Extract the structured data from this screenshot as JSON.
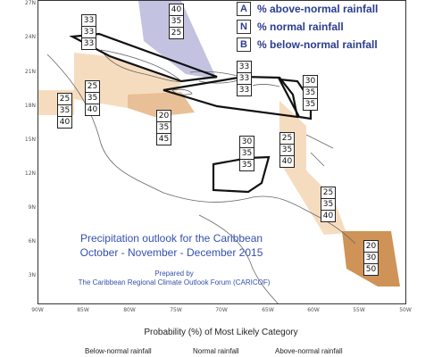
{
  "legend": {
    "items": [
      {
        "key": "A",
        "text": "% above-normal rainfall"
      },
      {
        "key": "N",
        "text": "% normal rainfall"
      },
      {
        "key": "B",
        "text": "% below-normal rainfall"
      }
    ]
  },
  "map": {
    "lat_labels": [
      "27N",
      "24N",
      "21N",
      "18N",
      "15N",
      "12N",
      "9N",
      "6N",
      "3N"
    ],
    "lon_labels": [
      "90W",
      "85W",
      "80W",
      "75W",
      "70W",
      "65W",
      "60W",
      "55W",
      "50W"
    ],
    "title_line1": "Precipitation outlook for the Caribbean",
    "title_line2": "October - November - December 2015",
    "credit_line1": "Prepared by",
    "credit_line2": "The Caribbean Regional Climate Outlook Forum (CARICOF)"
  },
  "colors": {
    "above_normal": "#b8b8dc",
    "below_normal": "#f6dcbf",
    "below_normal_strong": "#cf9357",
    "coast": "#666666",
    "text_blue": "#3450b0"
  },
  "probability_boxes": [
    {
      "id": "bahamas",
      "A": "33",
      "N": "33",
      "B": "33"
    },
    {
      "id": "northeast-atlantic",
      "A": "40",
      "N": "35",
      "B": "25"
    },
    {
      "id": "greater-antilles-east",
      "A": "33",
      "N": "33",
      "B": "33"
    },
    {
      "id": "leeward-islands",
      "A": "30",
      "N": "35",
      "B": "35"
    },
    {
      "id": "belize-yucatan",
      "A": "25",
      "N": "35",
      "B": "40"
    },
    {
      "id": "cuba-cayman",
      "A": "25",
      "N": "35",
      "B": "40"
    },
    {
      "id": "jamaica",
      "A": "20",
      "N": "35",
      "B": "45"
    },
    {
      "id": "central-caribbean",
      "A": "30",
      "N": "35",
      "B": "35"
    },
    {
      "id": "windward-islands",
      "A": "25",
      "N": "35",
      "B": "40"
    },
    {
      "id": "guyana",
      "A": "25",
      "N": "35",
      "B": "40"
    },
    {
      "id": "suriname-french-guiana",
      "A": "20",
      "N": "30",
      "B": "50"
    }
  ],
  "bottom": {
    "caption": "Probability (%) of Most Likely Category",
    "categories": [
      "Below-normal rainfall",
      "Normal rainfall",
      "Above-normal rainfall"
    ]
  }
}
